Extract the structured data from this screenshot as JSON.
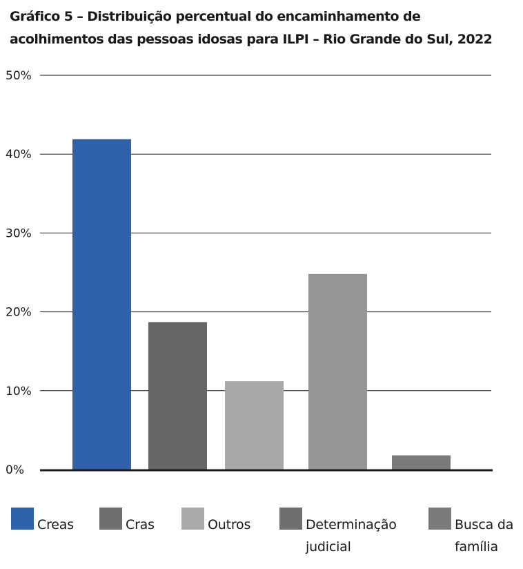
{
  "title": "Gráfico 5 – Distribuição percentual do encaminhamento de acolhimentos das pessoas idosas para ILPI – Rio Grande do Sul, 2022",
  "chart_data": {
    "type": "bar",
    "title": "Gráfico 5 – Distribuição percentual do encaminhamento de acolhimentos das pessoas idosas para ILPI – Rio Grande do Sul, 2022",
    "xlabel": "",
    "ylabel": "",
    "ylim": [
      0,
      50
    ],
    "yticks": [
      0,
      10,
      20,
      30,
      40,
      50
    ],
    "ytick_labels": [
      "0%",
      "10%",
      "20%",
      "30%",
      "40%",
      "50%"
    ],
    "grid": true,
    "legend_position": "bottom",
    "categories": [
      "Creas",
      "Cras",
      "Outros",
      "Determinação\njudicial",
      "Busca da\nfamília"
    ],
    "values": [
      41.9,
      18.7,
      11.2,
      24.8,
      1.8
    ],
    "colors": [
      "#2f62ab",
      "#666666",
      "#a8a8a8",
      "#959595",
      "#7b7b7b"
    ],
    "legend_colors": [
      "#2f62ab",
      "#6f6f6f",
      "#aaaaaa",
      "#6f6f6f",
      "#7b7b7b"
    ]
  }
}
